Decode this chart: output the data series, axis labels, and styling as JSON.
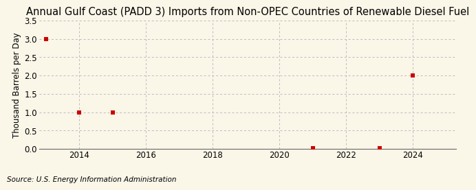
{
  "title": "Annual Gulf Coast (PADD 3) Imports from Non-OPEC Countries of Renewable Diesel Fuel",
  "ylabel": "Thousand Barrels per Day",
  "source": "Source: U.S. Energy Information Administration",
  "x_data": [
    2013,
    2014,
    2015,
    2021,
    2023,
    2024
  ],
  "y_data": [
    3.0,
    1.0,
    1.0,
    0.02,
    0.02,
    2.0
  ],
  "marker_color": "#cc0000",
  "marker_size": 4,
  "marker_style": "s",
  "xlim": [
    2012.8,
    2025.3
  ],
  "ylim": [
    0.0,
    3.5
  ],
  "yticks": [
    0.0,
    0.5,
    1.0,
    1.5,
    2.0,
    2.5,
    3.0,
    3.5
  ],
  "xticks": [
    2014,
    2016,
    2018,
    2020,
    2022,
    2024
  ],
  "background_color": "#faf6e8",
  "grid_color": "#bbbbbb",
  "title_fontsize": 10.5,
  "label_fontsize": 8.5,
  "source_fontsize": 7.5,
  "tick_fontsize": 8.5
}
